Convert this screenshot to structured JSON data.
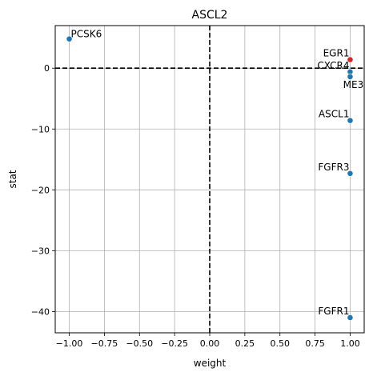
{
  "chart_data": {
    "type": "scatter",
    "title": "ASCL2",
    "xlabel": "weight",
    "ylabel": "stat",
    "xlim": [
      -1.1,
      1.1
    ],
    "ylim": [
      -43.5,
      7.0
    ],
    "xticks": [
      -1.0,
      -0.75,
      -0.5,
      -0.25,
      0.0,
      0.25,
      0.5,
      0.75,
      1.0
    ],
    "xtick_labels": [
      "−1.00",
      "−0.75",
      "−0.50",
      "−0.25",
      "0.00",
      "0.25",
      "0.50",
      "0.75",
      "1.00"
    ],
    "yticks": [
      0,
      -10,
      -20,
      -30,
      -40
    ],
    "ytick_labels": [
      "0",
      "−10",
      "−20",
      "−30",
      "−40"
    ],
    "grid": true,
    "reference_lines": {
      "x": 0,
      "y": 0,
      "style": "dashed",
      "color": "#000000"
    },
    "points": [
      {
        "label": "PCSK6",
        "x": -1.0,
        "y": 4.8,
        "color": "#1f77b4",
        "label_side": "right"
      },
      {
        "label": "EGR1",
        "x": 1.0,
        "y": 1.4,
        "color": "#d62728",
        "label_side": "left"
      },
      {
        "label": "CXCR4",
        "x": 1.0,
        "y": -0.6,
        "color": "#1f77b4",
        "label_side": "left"
      },
      {
        "label": "ME3",
        "x": 1.0,
        "y": -1.4,
        "color": "#1f77b4",
        "label_side": "below"
      },
      {
        "label": "ASCL1",
        "x": 1.0,
        "y": -8.6,
        "color": "#1f77b4",
        "label_side": "left"
      },
      {
        "label": "FGFR3",
        "x": 1.0,
        "y": -17.3,
        "color": "#1f77b4",
        "label_side": "left"
      },
      {
        "label": "FGFR1",
        "x": 1.0,
        "y": -41.0,
        "color": "#1f77b4",
        "label_side": "left"
      }
    ]
  }
}
